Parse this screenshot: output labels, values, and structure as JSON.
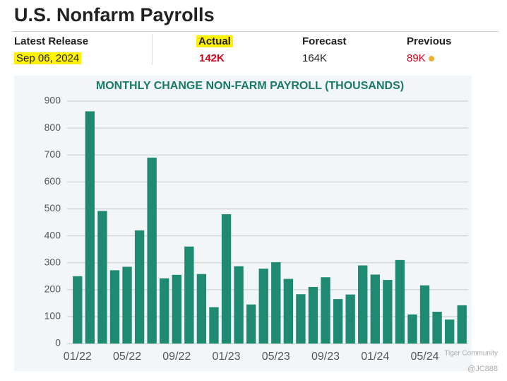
{
  "header": {
    "title": "U.S. Nonfarm Payrolls",
    "columns": [
      {
        "label": "Latest Release",
        "value": "Sep 06, 2024"
      },
      {
        "label": "Actual",
        "value": "142K"
      },
      {
        "label": "Forecast",
        "value": "164K"
      },
      {
        "label": "Previous",
        "value": "89K"
      }
    ]
  },
  "watermark": [
    "Tiger Community",
    "@JC888"
  ],
  "chart_data": {
    "type": "bar",
    "title": "MONTHLY CHANGE NON-FARM PAYROLL (THOUSANDS)",
    "categories": [
      "01/22",
      null,
      null,
      null,
      "05/22",
      null,
      null,
      null,
      "09/22",
      null,
      null,
      null,
      "01/23",
      null,
      null,
      null,
      "05/23",
      null,
      null,
      null,
      "09/23",
      null,
      null,
      null,
      "01/24",
      null,
      null,
      null,
      "05/24",
      null,
      null,
      null
    ],
    "values": [
      250,
      862,
      492,
      272,
      285,
      420,
      690,
      242,
      255,
      360,
      258,
      135,
      480,
      287,
      145,
      278,
      302,
      240,
      183,
      210,
      246,
      165,
      182,
      290,
      256,
      236,
      310,
      108,
      216,
      118,
      89,
      142
    ],
    "color": "#1e8a72",
    "ylim": [
      0,
      900
    ],
    "yticks": [
      0,
      100,
      200,
      300,
      400,
      500,
      600,
      700,
      800,
      900
    ],
    "grid": true
  }
}
